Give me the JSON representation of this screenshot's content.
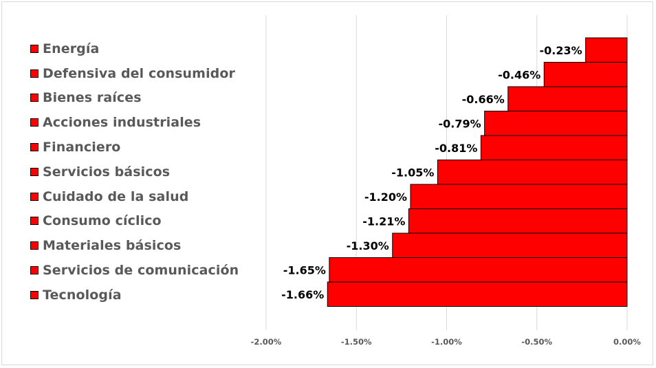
{
  "chart_data": {
    "type": "bar",
    "orientation": "horizontal",
    "title": "",
    "xlabel": "",
    "ylabel": "",
    "categories": [
      "Energía",
      "Defensiva del consumidor",
      "Bienes raíces",
      "Acciones industriales",
      "Financiero",
      "Servicios básicos",
      "Cuidado de la salud",
      "Consumo cíclico",
      "Materiales básicos",
      "Servicios de comunicación",
      "Tecnología"
    ],
    "values": [
      -0.23,
      -0.46,
      -0.66,
      -0.79,
      -0.81,
      -1.05,
      -1.2,
      -1.21,
      -1.3,
      -1.65,
      -1.66
    ],
    "value_labels": [
      "-0.23%",
      "-0.46%",
      "-0.66%",
      "-0.79%",
      "-0.81%",
      "-1.05%",
      "-1.20%",
      "-1.21%",
      "-1.30%",
      "-1.65%",
      "-1.66%"
    ],
    "xlim": [
      -2.0,
      0.0
    ],
    "xticks": [
      -2.0,
      -1.5,
      -1.0,
      -0.5,
      0.0
    ],
    "xtick_labels": [
      "-2.00%",
      "-1.50%",
      "-1.00%",
      "-0.50%",
      "0.00%"
    ],
    "grid": true,
    "legend_position": "left",
    "colors": {
      "bar": "#ff0000",
      "bar_edge": "#000000",
      "grid": "#d9d9d9",
      "tick_text": "#595959",
      "legend_text": "#595959"
    }
  }
}
